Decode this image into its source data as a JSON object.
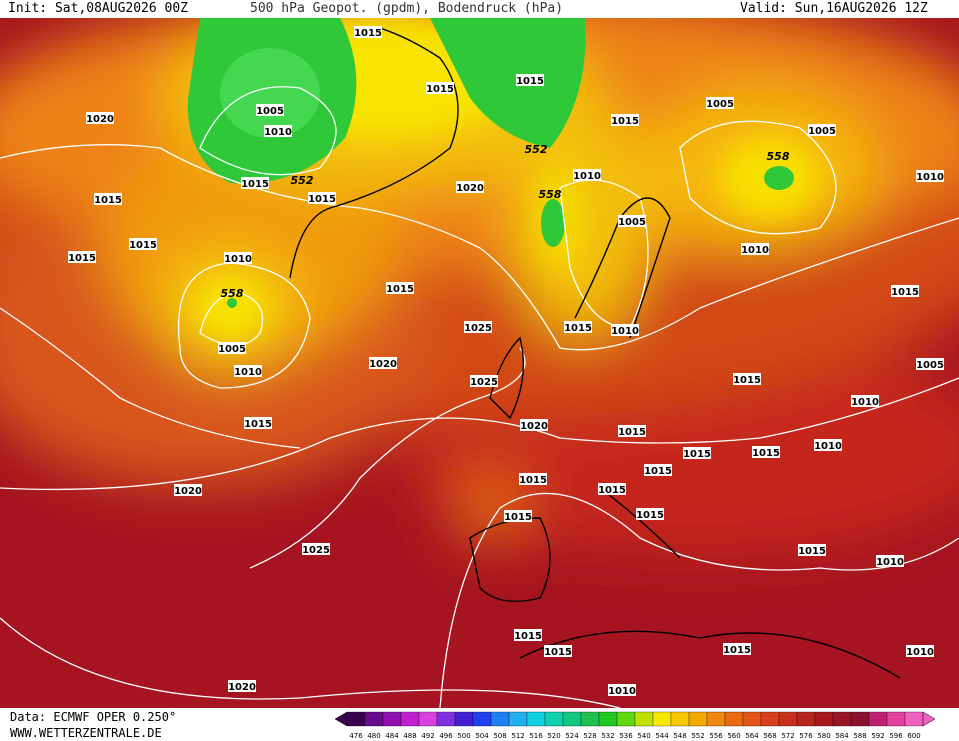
{
  "header": {
    "init": "Init: Sat,08AUG2026 00Z",
    "title": "500 hPa Geopot. (gpdm), Bodendruck (hPa)",
    "valid": "Valid: Sun,16AUG2026 12Z"
  },
  "footer": {
    "source": "Data: ECMWF OPER 0.250°",
    "website": "WWW.WETTERZENTRALE.DE"
  },
  "isobar_labels": [
    "1015",
    "1015",
    "1015",
    "1005",
    "1010",
    "1020",
    "1015",
    "1005",
    "1005",
    "1015",
    "1015",
    "1020",
    "1015",
    "1015",
    "1015",
    "1010",
    "1005",
    "1010",
    "1010",
    "1010",
    "1015",
    "1015",
    "1025",
    "1015",
    "1010",
    "1005",
    "1020",
    "1010",
    "1025",
    "1015",
    "1005",
    "1010",
    "1015",
    "1020",
    "1015",
    "1015",
    "1015",
    "1010",
    "1015",
    "1015",
    "1015",
    "1020",
    "1015",
    "1015",
    "1025",
    "1015",
    "1010",
    "1015",
    "1015",
    "1015",
    "1010",
    "1020",
    "1010"
  ],
  "geopotential_labels": [
    "552",
    "552",
    "558",
    "558",
    "558"
  ],
  "colorbar": {
    "labels": [
      476,
      480,
      484,
      488,
      492,
      496,
      500,
      504,
      508,
      512,
      516,
      520,
      524,
      528,
      532,
      536,
      540,
      544,
      548,
      552,
      556,
      560,
      564,
      568,
      572,
      576,
      580,
      584,
      588,
      592,
      596,
      600
    ]
  }
}
